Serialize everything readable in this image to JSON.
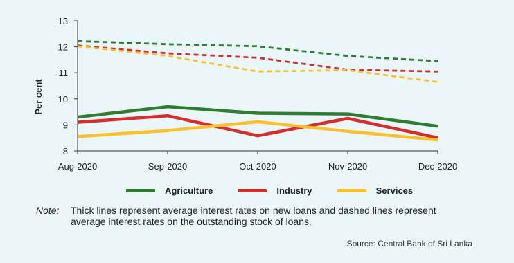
{
  "chart_data": {
    "type": "line",
    "categories": [
      "Aug-2020",
      "Sep-2020",
      "Oct-2020",
      "Nov-2020",
      "Dec-2020"
    ],
    "ylabel": "Per cent",
    "ylim": [
      8,
      13
    ],
    "yticks": [
      8,
      9,
      10,
      11,
      12,
      13
    ],
    "grid": false,
    "legend_position": "bottom",
    "series": [
      {
        "name": "Agriculture",
        "key": "agriculture-new",
        "style": "solid",
        "color": "#2e7d32",
        "values": [
          9.3,
          9.7,
          9.45,
          9.42,
          8.95
        ]
      },
      {
        "name": "Industry",
        "key": "industry-new",
        "style": "solid",
        "color": "#d32f2f",
        "values": [
          9.1,
          9.35,
          8.58,
          9.25,
          8.5
        ]
      },
      {
        "name": "Services",
        "key": "services-new",
        "style": "solid",
        "color": "#fbc02d",
        "values": [
          8.55,
          8.78,
          9.12,
          8.75,
          8.42
        ]
      },
      {
        "name": "Agriculture",
        "key": "agriculture-stock",
        "style": "dashed",
        "color": "#2e7d32",
        "values": [
          12.22,
          12.1,
          12.02,
          11.65,
          11.45
        ]
      },
      {
        "name": "Industry",
        "key": "industry-stock",
        "style": "dashed",
        "color": "#d32f2f",
        "values": [
          12.05,
          11.75,
          11.58,
          11.12,
          11.05
        ]
      },
      {
        "name": "Services",
        "key": "services-stock",
        "style": "dashed",
        "color": "#fbc02d",
        "values": [
          12.02,
          11.65,
          11.05,
          11.1,
          10.65
        ]
      }
    ]
  },
  "legend": [
    {
      "label": "Agriculture",
      "color": "#2e7d32"
    },
    {
      "label": "Industry",
      "color": "#d32f2f"
    },
    {
      "label": "Services",
      "color": "#fbc02d"
    }
  ],
  "note": {
    "label": "Note:",
    "text": "Thick lines represent average interest rates on new loans and dashed lines represent average interest rates on the outstanding stock of loans."
  },
  "source": "Source: Central Bank of Sri Lanka"
}
